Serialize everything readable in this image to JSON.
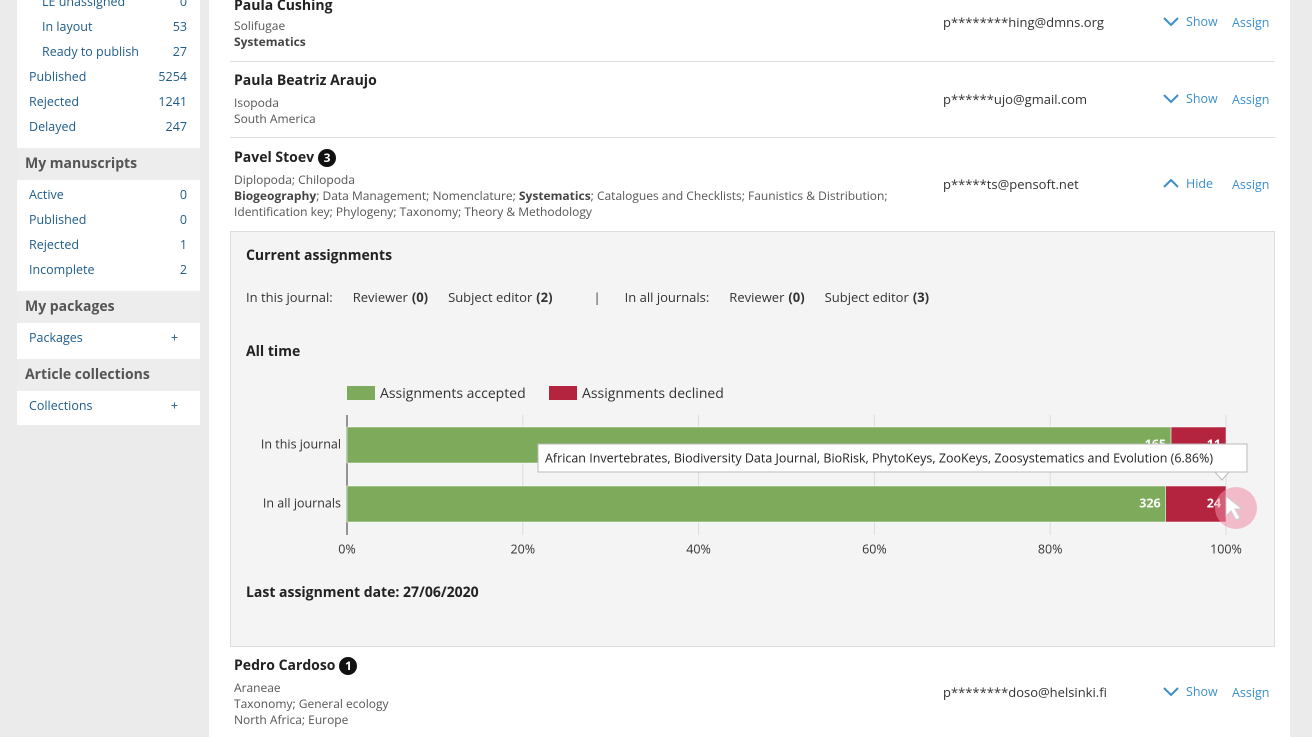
{
  "sidebar": {
    "substatuses": [
      {
        "label": "LE unassigned",
        "count": 0
      },
      {
        "label": "In layout",
        "count": 53
      },
      {
        "label": "Ready to publish",
        "count": 27
      }
    ],
    "statuses": [
      {
        "label": "Published",
        "count": 5254
      },
      {
        "label": "Rejected",
        "count": 1241
      },
      {
        "label": "Delayed",
        "count": 247
      }
    ],
    "sections": [
      {
        "title": "My manuscripts",
        "items": [
          {
            "label": "Active",
            "count": 0
          },
          {
            "label": "Published",
            "count": 0
          },
          {
            "label": "Rejected",
            "count": 1
          },
          {
            "label": "Incomplete",
            "count": 2
          }
        ]
      },
      {
        "title": "My packages",
        "items": [
          {
            "label": "Packages",
            "action": "+"
          }
        ]
      },
      {
        "title": "Article collections",
        "items": [
          {
            "label": "Collections",
            "action": "+"
          }
        ]
      }
    ]
  },
  "editors": [
    {
      "name": "Paula Cushing",
      "lines": [
        [
          "Solifugae"
        ],
        [
          {
            "text": "Systematics",
            "bold": true
          }
        ]
      ],
      "email": "p********hing@dmns.org",
      "toggle": "Show",
      "assign": "Assign"
    },
    {
      "name": "Paula Beatriz Araujo",
      "lines": [
        [
          "Isopoda"
        ],
        [
          "South America"
        ]
      ],
      "email": "p******ujo@gmail.com",
      "toggle": "Show",
      "assign": "Assign"
    },
    {
      "name": "Pavel Stoev",
      "badge": 3,
      "lines": [
        [
          "Diplopoda; Chilopoda"
        ],
        [
          {
            "text": "Biogeography",
            "bold": true
          },
          "; Data Management; Nomenclature; ",
          {
            "text": "Systematics",
            "bold": true
          },
          "; Catalogues and Checklists; Faunistics & Distribution;"
        ],
        [
          "Identification key; Phylogeny; Taxonomy; Theory & Methodology"
        ]
      ],
      "email": "p*****ts@pensoft.net",
      "toggle": "Hide",
      "assign": "Assign"
    },
    {
      "name": "Pedro Cardoso",
      "badge": 1,
      "lines": [
        [
          "Araneae"
        ],
        [
          "Taxonomy; General ecology"
        ],
        [
          "North Africa; Europe"
        ]
      ],
      "email": "p********doso@helsinki.fi",
      "toggle": "Show",
      "assign": "Assign"
    }
  ],
  "assignments": {
    "title": "Current assignments",
    "separator": "|",
    "groups": [
      {
        "label": "In this journal:",
        "items": [
          {
            "label": "Reviewer",
            "count": "(0)"
          },
          {
            "label": "Subject editor",
            "count": "(2)"
          }
        ]
      },
      {
        "label": "In all journals:",
        "items": [
          {
            "label": "Reviewer",
            "count": "(0)"
          },
          {
            "label": "Subject editor",
            "count": "(3)"
          }
        ]
      }
    ]
  },
  "chart_data": {
    "type": "bar",
    "orientation": "horizontal",
    "stacking": "percent",
    "title": "All time",
    "categories": [
      "In this journal",
      "In all journals"
    ],
    "series": [
      {
        "name": "Assignments accepted",
        "color": "#7daa5b",
        "values": [
          165,
          326
        ]
      },
      {
        "name": "Assignments declined",
        "color": "#b5243e",
        "values": [
          11,
          24
        ]
      }
    ],
    "xlim": [
      0,
      100
    ],
    "xticks": [
      {
        "value": 0,
        "label": "0%"
      },
      {
        "value": 20,
        "label": "20%"
      },
      {
        "value": 40,
        "label": "40%"
      },
      {
        "value": 60,
        "label": "60%"
      },
      {
        "value": 80,
        "label": "80%"
      },
      {
        "value": 100,
        "label": "100%"
      }
    ],
    "grid": true,
    "legend": "top",
    "tooltip": "African Invertebrates, Biodiversity Data Journal, BioRisk, PhytoKeys, ZooKeys, Zoosystematics and Evolution (6.86%)"
  },
  "last_assignment": "Last assignment date: 27/06/2020"
}
